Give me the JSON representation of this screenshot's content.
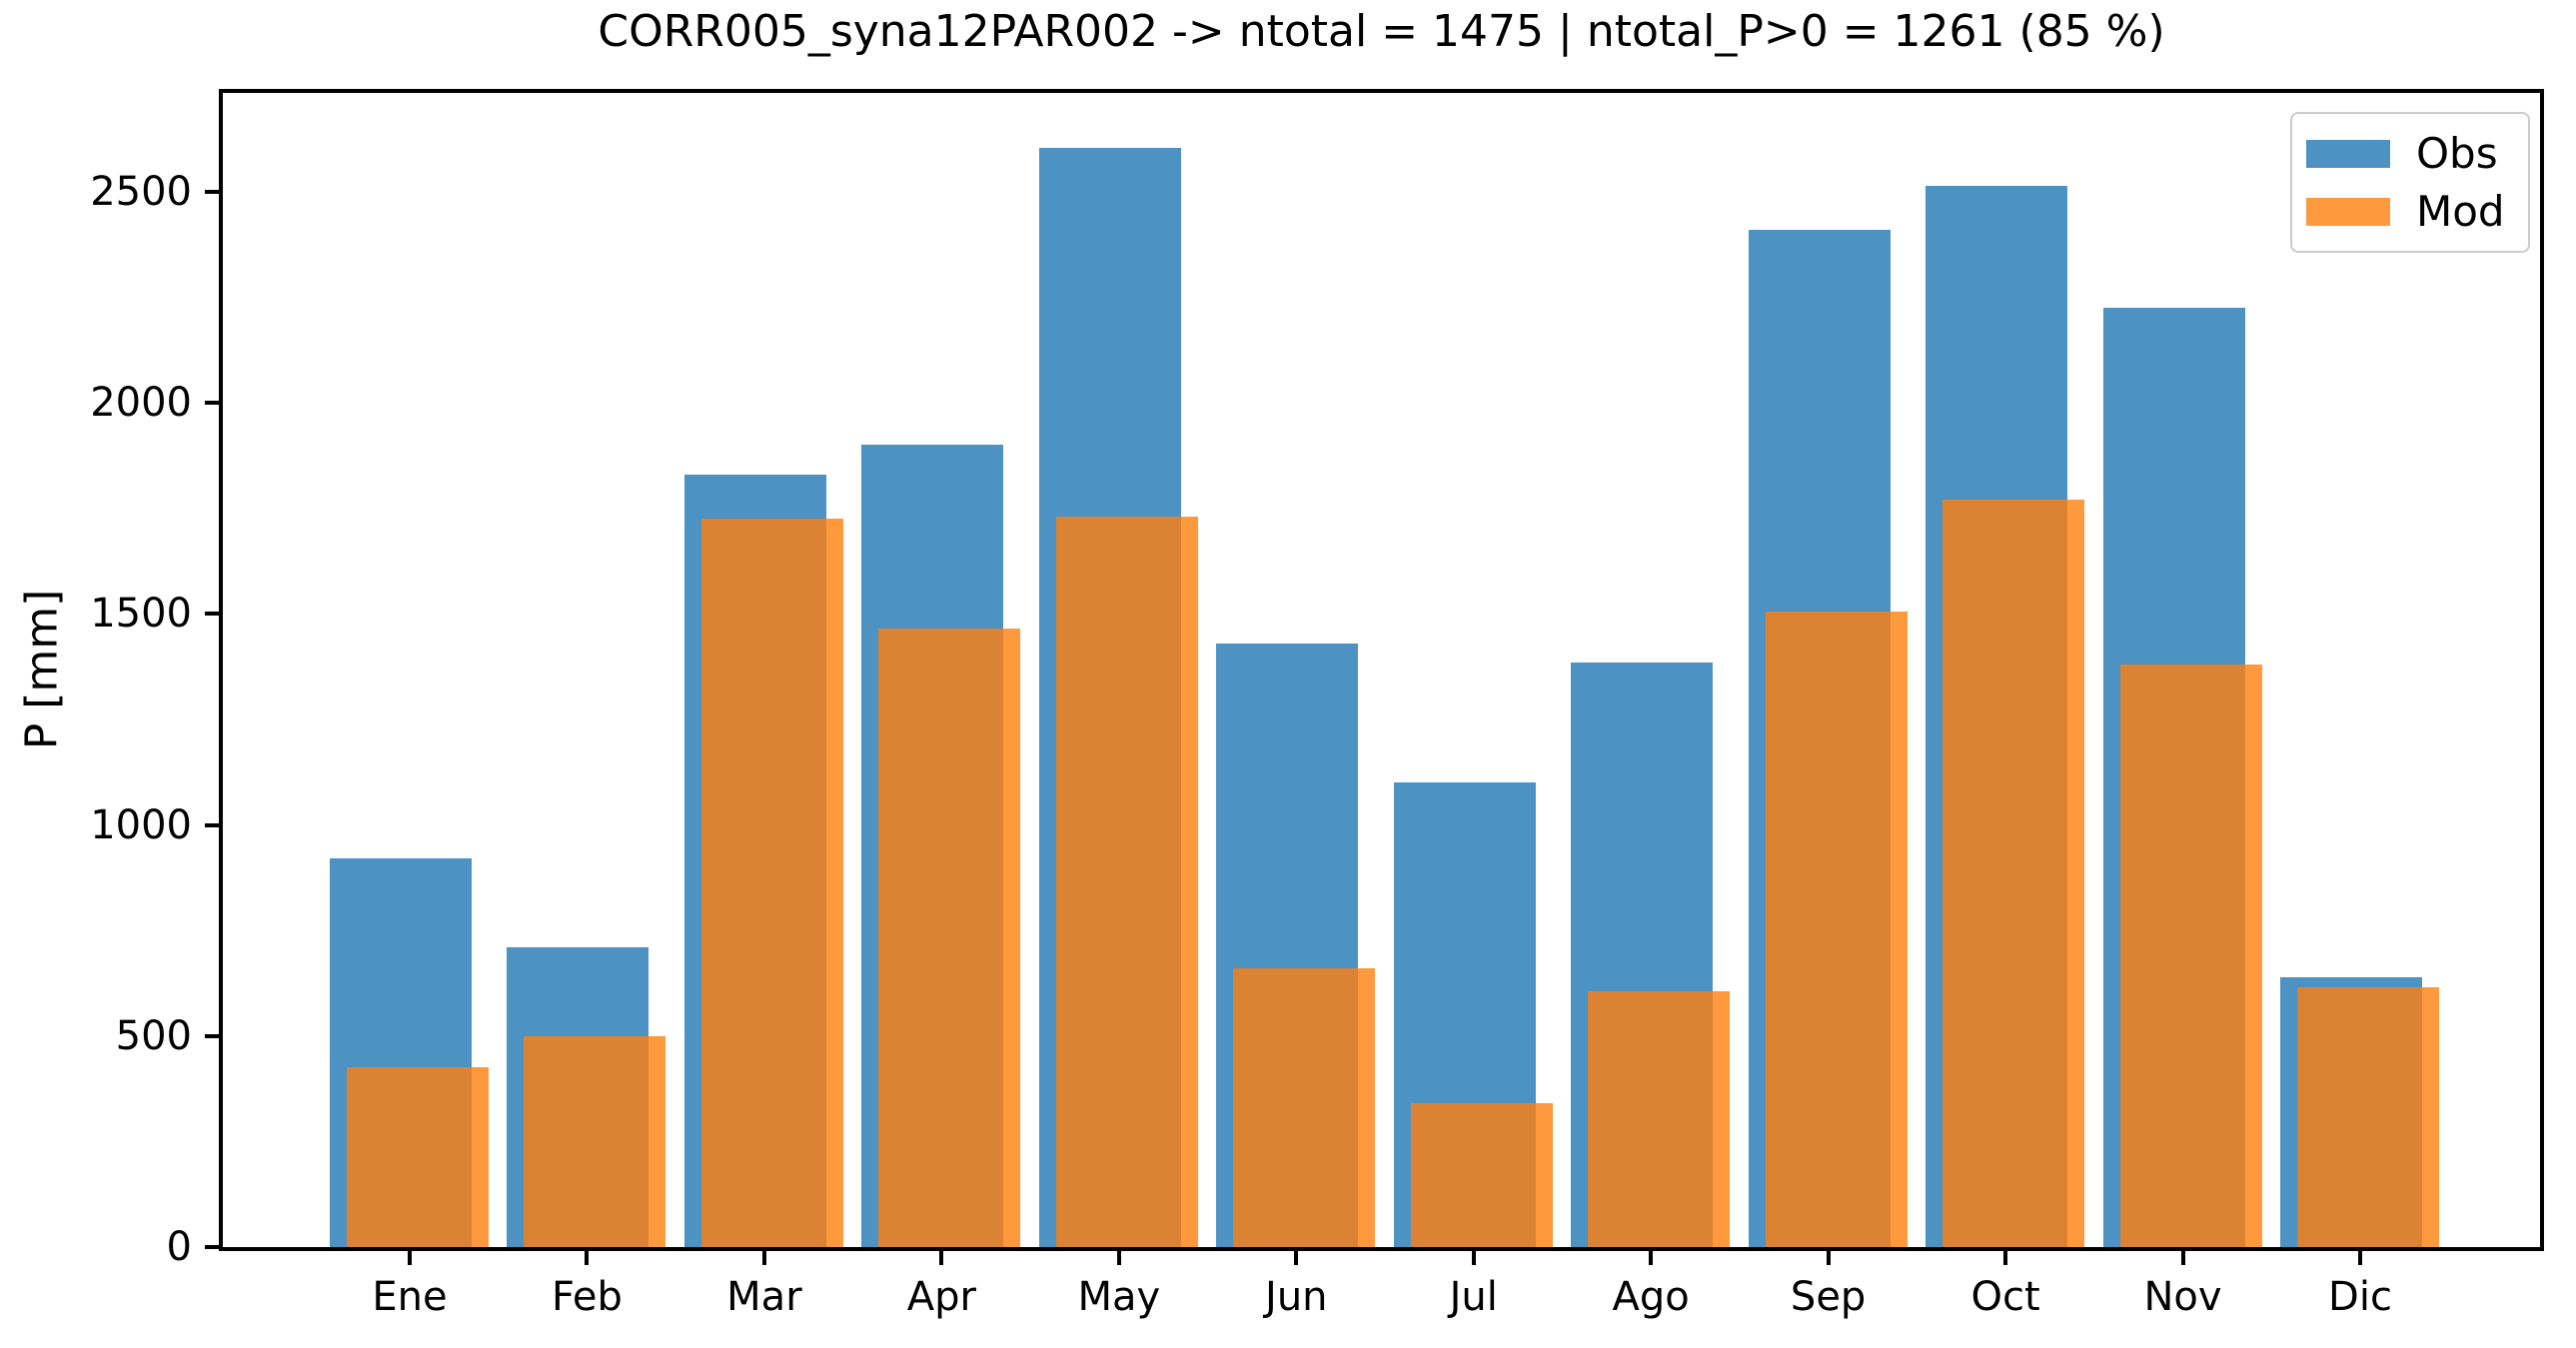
{
  "chart": {
    "title": "CORR005_syna12PAR002 -> ntotal = 1475 | ntotal_P>0 = 1261 (85 %)",
    "ylabel": "P [mm]",
    "legend": [
      {
        "label": "Obs",
        "color": "#4C92C3"
      },
      {
        "label": "Mod",
        "color": "#FF993E"
      }
    ],
    "colors": {
      "obs": "#4C92C3",
      "mod_base": "#FF7F0E",
      "mod_alpha": 0.8,
      "mod_over_white": "#FF993E",
      "mod_over_obs": "#DB8332",
      "axis": "#000000",
      "legend_border": "#CCCCCC",
      "background": "#FFFFFF"
    }
  },
  "chart_data": {
    "type": "bar",
    "title": "CORR005_syna12PAR002 -> ntotal = 1475 | ntotal_P>0 = 1261 (85 %)",
    "xlabel": "",
    "ylabel": "P [mm]",
    "categories": [
      "Ene",
      "Feb",
      "Mar",
      "Apr",
      "May",
      "Jun",
      "Jul",
      "Ago",
      "Sep",
      "Oct",
      "Nov",
      "Dic"
    ],
    "series": [
      {
        "name": "Obs",
        "values": [
          920,
          710,
          1830,
          1900,
          2605,
          1430,
          1100,
          1385,
          2410,
          2515,
          2225,
          640
        ]
      },
      {
        "name": "Mod",
        "values": [
          425,
          500,
          1725,
          1465,
          1730,
          660,
          340,
          605,
          1505,
          1770,
          1380,
          615
        ]
      }
    ],
    "ylim": [
      0,
      2734
    ],
    "yticks": [
      0,
      500,
      1000,
      1500,
      2000,
      2500
    ],
    "grid": false,
    "legend_position": "upper right",
    "bar_style": "overlapping-translucent"
  }
}
